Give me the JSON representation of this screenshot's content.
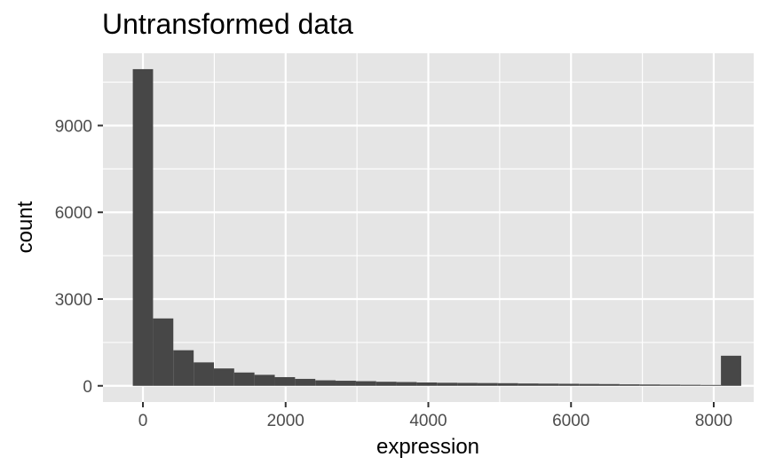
{
  "chart_data": {
    "type": "histogram",
    "title": "Untransformed data",
    "xlabel": "expression",
    "ylabel": "count",
    "x_ticks": [
      0,
      2000,
      4000,
      6000,
      8000
    ],
    "y_ticks": [
      0,
      3000,
      6000,
      9000
    ],
    "xlim": [
      -560,
      8560
    ],
    "ylim": [
      -560,
      11500
    ],
    "grid": true,
    "legend": "none",
    "colors": {
      "panel_background": "#e5e5e5",
      "grid": "#ffffff",
      "bar": "#474747",
      "tick": "#333333"
    },
    "bins": [
      {
        "x0": -142,
        "x1": 142,
        "count": 10950
      },
      {
        "x0": 142,
        "x1": 426,
        "count": 2330
      },
      {
        "x0": 426,
        "x1": 711,
        "count": 1230
      },
      {
        "x0": 711,
        "x1": 995,
        "count": 810
      },
      {
        "x0": 995,
        "x1": 1279,
        "count": 600
      },
      {
        "x0": 1279,
        "x1": 1563,
        "count": 460
      },
      {
        "x0": 1563,
        "x1": 1848,
        "count": 380
      },
      {
        "x0": 1848,
        "x1": 2132,
        "count": 300
      },
      {
        "x0": 2132,
        "x1": 2416,
        "count": 240
      },
      {
        "x0": 2416,
        "x1": 2700,
        "count": 190
      },
      {
        "x0": 2700,
        "x1": 2985,
        "count": 175
      },
      {
        "x0": 2985,
        "x1": 3269,
        "count": 160
      },
      {
        "x0": 3269,
        "x1": 3553,
        "count": 140
      },
      {
        "x0": 3553,
        "x1": 3837,
        "count": 130
      },
      {
        "x0": 3837,
        "x1": 4121,
        "count": 115
      },
      {
        "x0": 4121,
        "x1": 4406,
        "count": 105
      },
      {
        "x0": 4406,
        "x1": 4690,
        "count": 100
      },
      {
        "x0": 4690,
        "x1": 4974,
        "count": 95
      },
      {
        "x0": 4974,
        "x1": 5258,
        "count": 90
      },
      {
        "x0": 5258,
        "x1": 5543,
        "count": 80
      },
      {
        "x0": 5543,
        "x1": 5827,
        "count": 75
      },
      {
        "x0": 5827,
        "x1": 6111,
        "count": 70
      },
      {
        "x0": 6111,
        "x1": 6395,
        "count": 65
      },
      {
        "x0": 6395,
        "x1": 6680,
        "count": 60
      },
      {
        "x0": 6680,
        "x1": 6964,
        "count": 50
      },
      {
        "x0": 6964,
        "x1": 7248,
        "count": 45
      },
      {
        "x0": 7248,
        "x1": 7532,
        "count": 40
      },
      {
        "x0": 7532,
        "x1": 7817,
        "count": 35
      },
      {
        "x0": 7817,
        "x1": 8101,
        "count": 30
      },
      {
        "x0": 8101,
        "x1": 8385,
        "count": 1040
      }
    ]
  }
}
